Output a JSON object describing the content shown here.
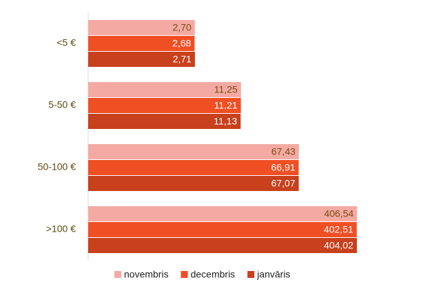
{
  "chart_data": {
    "type": "hbar",
    "log": true,
    "xlim": [
      0.1,
      500
    ],
    "categories": [
      "<5 €",
      "5-50 €",
      "50-100 €",
      ">100 €"
    ],
    "series": [
      {
        "name": "novembris",
        "color": "#f4aaa3",
        "label_color": "#7a4a12",
        "values": [
          2.7,
          11.25,
          67.43,
          406.54
        ],
        "value_labels": [
          "2,70",
          "11,25",
          "67,43",
          "406,54"
        ]
      },
      {
        "name": "decembris",
        "color": "#f04f24",
        "label_color": "#ffffff",
        "values": [
          2.68,
          11.21,
          66.91,
          402.51
        ],
        "value_labels": [
          "2,68",
          "11,21",
          "66,91",
          "402,51"
        ]
      },
      {
        "name": "janvāris",
        "color": "#c8401c",
        "label_color": "#ffffff",
        "values": [
          2.71,
          11.13,
          67.07,
          404.02
        ],
        "value_labels": [
          "2,71",
          "11,13",
          "67,07",
          "404,02"
        ]
      }
    ]
  }
}
